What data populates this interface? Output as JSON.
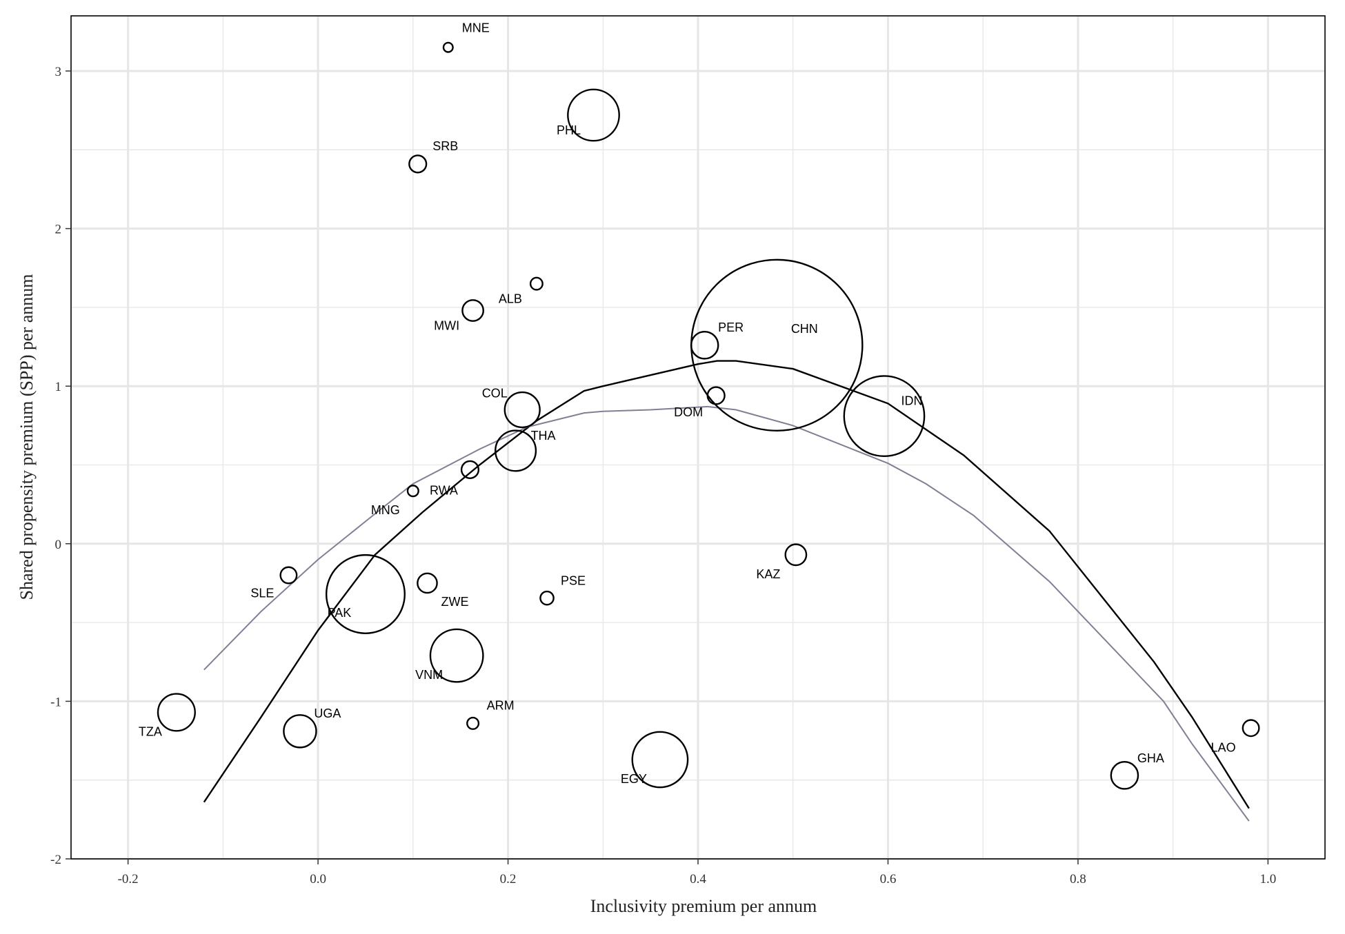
{
  "chart_data": {
    "type": "scatter",
    "title": "",
    "xlabel": "Inclusivity premium per annum",
    "ylabel": "Shared propensity premium (SPP) per annum",
    "xlim": [
      -0.26,
      1.06
    ],
    "ylim": [
      -2.0,
      3.35
    ],
    "x_ticks": [
      -0.2,
      0.0,
      0.2,
      0.4,
      0.6,
      0.8,
      1.0
    ],
    "x_tick_labels": [
      "-0.2",
      "0.0",
      "0.2",
      "0.4",
      "0.6",
      "0.8",
      "1.0"
    ],
    "y_ticks": [
      -2,
      -1,
      0,
      1,
      2,
      3
    ],
    "y_tick_labels": [
      "-2",
      "-1",
      "0",
      "1",
      "2",
      "3"
    ],
    "grid": true,
    "legend": "none",
    "colors": {
      "points": "#000000",
      "fit_black": "#000000",
      "fit_gray": "#807f94",
      "grid": "#e6e6e6",
      "background": "#ffffff"
    },
    "points": [
      {
        "label": "MNE",
        "x": 0.137,
        "y": 3.15,
        "size": 0.3
      },
      {
        "label": "PHL",
        "x": 0.29,
        "y": 2.72,
        "size": 9
      },
      {
        "label": "SRB",
        "x": 0.105,
        "y": 2.41,
        "size": 1
      },
      {
        "label": "ALB",
        "x": 0.23,
        "y": 1.65,
        "size": 0.5
      },
      {
        "label": "MWI",
        "x": 0.163,
        "y": 1.48,
        "size": 1.5
      },
      {
        "label": "PER",
        "x": 0.407,
        "y": 1.26,
        "size": 2.5
      },
      {
        "label": "CHN",
        "x": 0.483,
        "y": 1.26,
        "size": 100
      },
      {
        "label": "COL",
        "x": 0.215,
        "y": 0.85,
        "size": 4.2
      },
      {
        "label": "DOM",
        "x": 0.419,
        "y": 0.94,
        "size": 1
      },
      {
        "label": "IDN",
        "x": 0.596,
        "y": 0.81,
        "size": 22
      },
      {
        "label": "THA",
        "x": 0.208,
        "y": 0.59,
        "size": 5.6
      },
      {
        "label": "RWA",
        "x": 0.16,
        "y": 0.47,
        "size": 1
      },
      {
        "label": "MNG",
        "x": 0.1,
        "y": 0.335,
        "size": 0.4
      },
      {
        "label": "KAZ",
        "x": 0.503,
        "y": -0.07,
        "size": 1.5
      },
      {
        "label": "SLE",
        "x": -0.031,
        "y": -0.2,
        "size": 0.9
      },
      {
        "label": "ZWE",
        "x": 0.115,
        "y": -0.25,
        "size": 1.3
      },
      {
        "label": "PAK",
        "x": 0.05,
        "y": -0.32,
        "size": 21
      },
      {
        "label": "PSE",
        "x": 0.241,
        "y": -0.345,
        "size": 0.6
      },
      {
        "label": "VNM",
        "x": 0.146,
        "y": -0.71,
        "size": 9.5
      },
      {
        "label": "TZA",
        "x": -0.149,
        "y": -1.07,
        "size": 4.7
      },
      {
        "label": "UGA",
        "x": -0.019,
        "y": -1.19,
        "size": 3.6
      },
      {
        "label": "ARM",
        "x": 0.163,
        "y": -1.14,
        "size": 0.45
      },
      {
        "label": "EGY",
        "x": 0.36,
        "y": -1.37,
        "size": 10.5
      },
      {
        "label": "GHA",
        "x": 0.849,
        "y": -1.47,
        "size": 2.5
      },
      {
        "label": "LAO",
        "x": 0.982,
        "y": -1.17,
        "size": 0.9
      }
    ],
    "series": [
      {
        "color": "#000000",
        "x": [
          -0.12,
          -0.06,
          0.0,
          0.06,
          0.11,
          0.17,
          0.23,
          0.28,
          0.3,
          0.35,
          0.4,
          0.42,
          0.44,
          0.5,
          0.6,
          0.68,
          0.77,
          0.88,
          0.92,
          0.98
        ],
        "y": [
          -1.64,
          -1.1,
          -0.55,
          -0.07,
          0.2,
          0.5,
          0.78,
          0.97,
          1.0,
          1.07,
          1.14,
          1.16,
          1.16,
          1.11,
          0.89,
          0.56,
          0.08,
          -0.75,
          -1.1,
          -1.68
        ]
      },
      {
        "color": "#807f94",
        "x": [
          -0.12,
          -0.06,
          0.0,
          0.06,
          0.1,
          0.17,
          0.22,
          0.28,
          0.3,
          0.35,
          0.41,
          0.44,
          0.5,
          0.6,
          0.64,
          0.69,
          0.77,
          0.89,
          0.92,
          0.98
        ],
        "y": [
          -0.8,
          -0.43,
          -0.1,
          0.19,
          0.38,
          0.6,
          0.74,
          0.83,
          0.84,
          0.85,
          0.87,
          0.85,
          0.75,
          0.51,
          0.38,
          0.18,
          -0.24,
          -1.0,
          -1.27,
          -1.76
        ]
      }
    ]
  }
}
